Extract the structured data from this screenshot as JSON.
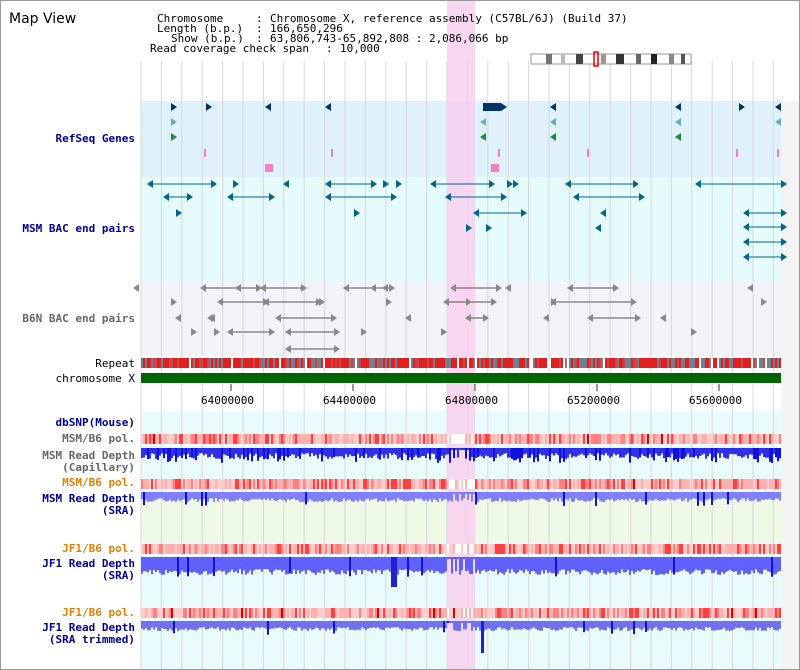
{
  "app": {
    "title": "Map View"
  },
  "info": {
    "chromosome_key": "Chromosome",
    "chromosome_value": "Chromosome X, reference assembly (C57BL/6J) (Build 37)",
    "length_key": "Length (b.p.)",
    "length_value": "166,650,296",
    "show_key": "Show (b.p.)",
    "show_value": "63,806,743-65,892,808 : 2,086,066 bp",
    "coverage_key": "Read coverage check span",
    "coverage_value": "10,000"
  },
  "tracks": {
    "refseq": "RefSeq Genes",
    "msm_bac": "MSM BAC end pairs",
    "b6n_bac": "B6N BAC end pairs",
    "repeat": "Repeat",
    "chromosome": "chromosome X",
    "dbsnp": "dbSNP(Mouse)",
    "msm_b6_pol_1": "MSM/B6 pol.",
    "msm_read_cap_1": "MSM Read Depth",
    "msm_read_cap_2": "(Capillary)",
    "msm_b6_pol_2": "MSM/B6 pol.",
    "msm_read_sra_1": "MSM Read Depth",
    "msm_read_sra_2": "(SRA)",
    "jf1_b6_pol_1": "JF1/B6 pol.",
    "jf1_read_sra_1": "JF1 Read Depth",
    "jf1_read_sra_2": "(SRA)",
    "jf1_b6_pol_2": "JF1/B6 pol.",
    "jf1_read_trim_1": "JF1 Read Depth",
    "jf1_read_trim_2": "(SRA trimmed)"
  },
  "ruler": {
    "ticks": [
      "64000000",
      "64400000",
      "64800000",
      "65200000",
      "65600000"
    ]
  },
  "colors": {
    "refseq_bg": "#dff1fb",
    "msm_bg": "#e6fbfb",
    "b6n_bg": "#f3f3f8",
    "highlight": "#f8d0ee",
    "chromosome_bar": "#006400",
    "depth_blue": "#6060ff",
    "depth_dark": "#1010e0",
    "pol_red": "#e03030"
  }
}
